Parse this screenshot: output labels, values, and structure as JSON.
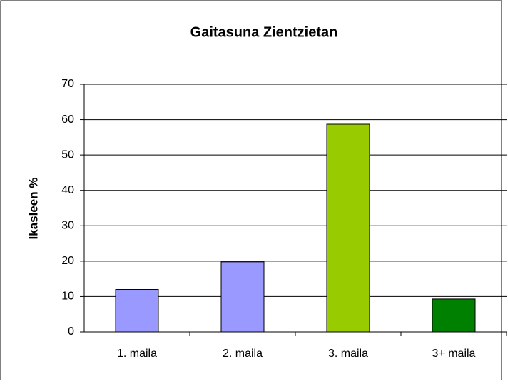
{
  "chart_data": {
    "type": "bar",
    "title": "Gaitasuna Zientzietan",
    "y_label": "Ikasleen %",
    "categories": [
      "1. maila",
      "2. maila",
      "3. maila",
      "3+ maila"
    ],
    "values": [
      12,
      19.8,
      58.7,
      9.3
    ],
    "colors": [
      "#9999ff",
      "#9999ff",
      "#99cc00",
      "#008000"
    ],
    "ylim": [
      0,
      70
    ],
    "yticks": [
      0,
      10,
      20,
      30,
      40,
      50,
      60,
      70
    ],
    "grid": true
  }
}
